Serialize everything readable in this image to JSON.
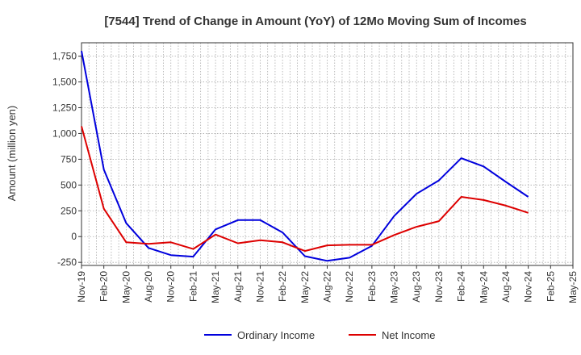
{
  "chart_data": {
    "type": "line",
    "title": "[7544]  Trend of Change in Amount (YoY) of 12Mo Moving Sum of Incomes",
    "xlabel": "",
    "ylabel": "Amount (million yen)",
    "ylim": [
      -280,
      1880
    ],
    "yticks": [
      -250,
      0,
      250,
      500,
      750,
      1000,
      1250,
      1500,
      1750
    ],
    "ytick_labels": [
      "-250",
      "0",
      "250",
      "500",
      "750",
      "1,000",
      "1,250",
      "1,500",
      "1,750"
    ],
    "categories": [
      "Nov-19",
      "Feb-20",
      "May-20",
      "Aug-20",
      "Nov-20",
      "Feb-21",
      "May-21",
      "Aug-21",
      "Nov-21",
      "Feb-22",
      "May-22",
      "Aug-22",
      "Nov-22",
      "Feb-23",
      "May-23",
      "Aug-23",
      "Nov-23",
      "Feb-24",
      "May-24",
      "Aug-24",
      "Nov-24",
      "Feb-25",
      "May-25"
    ],
    "grid": true,
    "legend_position": "bottom",
    "series": [
      {
        "name": "Ordinary Income",
        "color": "#0000dd",
        "values": [
          1800,
          650,
          130,
          -110,
          -180,
          -195,
          70,
          160,
          160,
          40,
          -190,
          -235,
          -205,
          -90,
          200,
          415,
          545,
          760,
          680,
          530,
          385,
          null,
          null
        ]
      },
      {
        "name": "Net Income",
        "color": "#dd0000",
        "values": [
          1070,
          270,
          -55,
          -70,
          -55,
          -120,
          20,
          -65,
          -35,
          -55,
          -140,
          -85,
          -80,
          -80,
          15,
          95,
          150,
          385,
          355,
          300,
          230,
          null,
          null
        ]
      }
    ]
  }
}
